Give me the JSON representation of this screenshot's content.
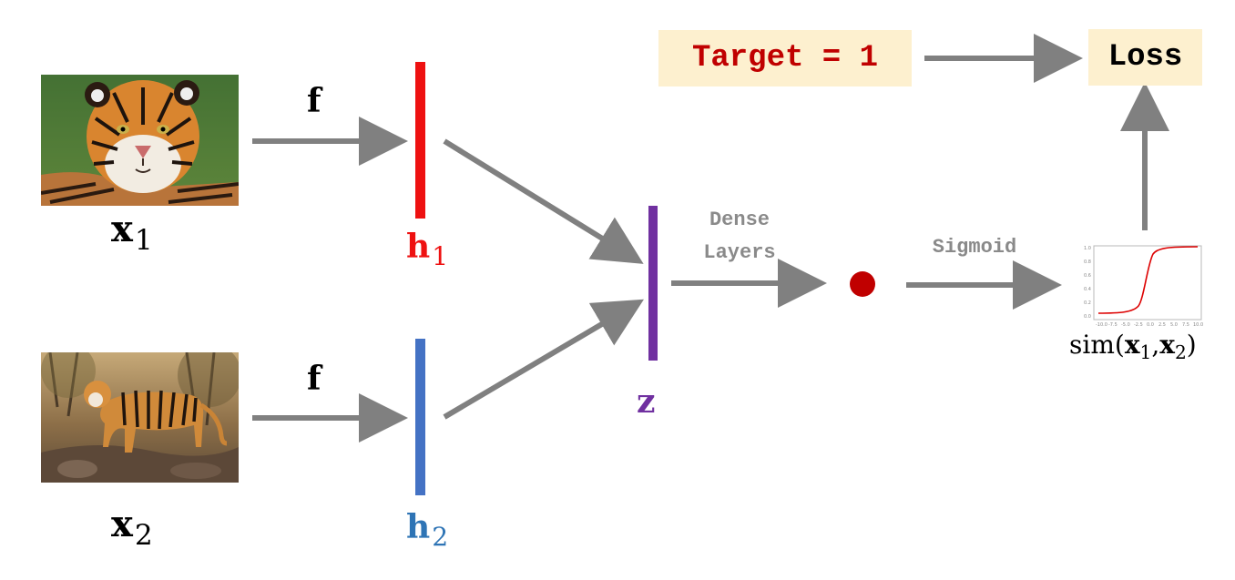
{
  "inputs": [
    {
      "var": "x",
      "sub": "1"
    },
    {
      "var": "x",
      "sub": "2"
    }
  ],
  "encoder": {
    "label": "f"
  },
  "embeddings": [
    {
      "var": "h",
      "sub": "1",
      "color": "#ee1111"
    },
    {
      "var": "h",
      "sub": "2",
      "color": "#4472c4"
    }
  ],
  "combined": {
    "var": "z",
    "color": "#7030a0"
  },
  "dense": {
    "line1": "Dense",
    "line2": "Layers"
  },
  "sigmoid": {
    "label": "Sigmoid"
  },
  "dot_color": "#c00000",
  "sim": {
    "func": "sim",
    "open": "(",
    "a_var": "x",
    "a_sub": "1",
    "comma": ",",
    "b_var": "x",
    "b_sub": "2",
    "close": ")"
  },
  "target": {
    "text": "Target = 1",
    "color": "#c00000"
  },
  "loss": {
    "text": "Loss"
  },
  "colors": {
    "arrow": "#808080",
    "box": "#fdf0cf"
  }
}
